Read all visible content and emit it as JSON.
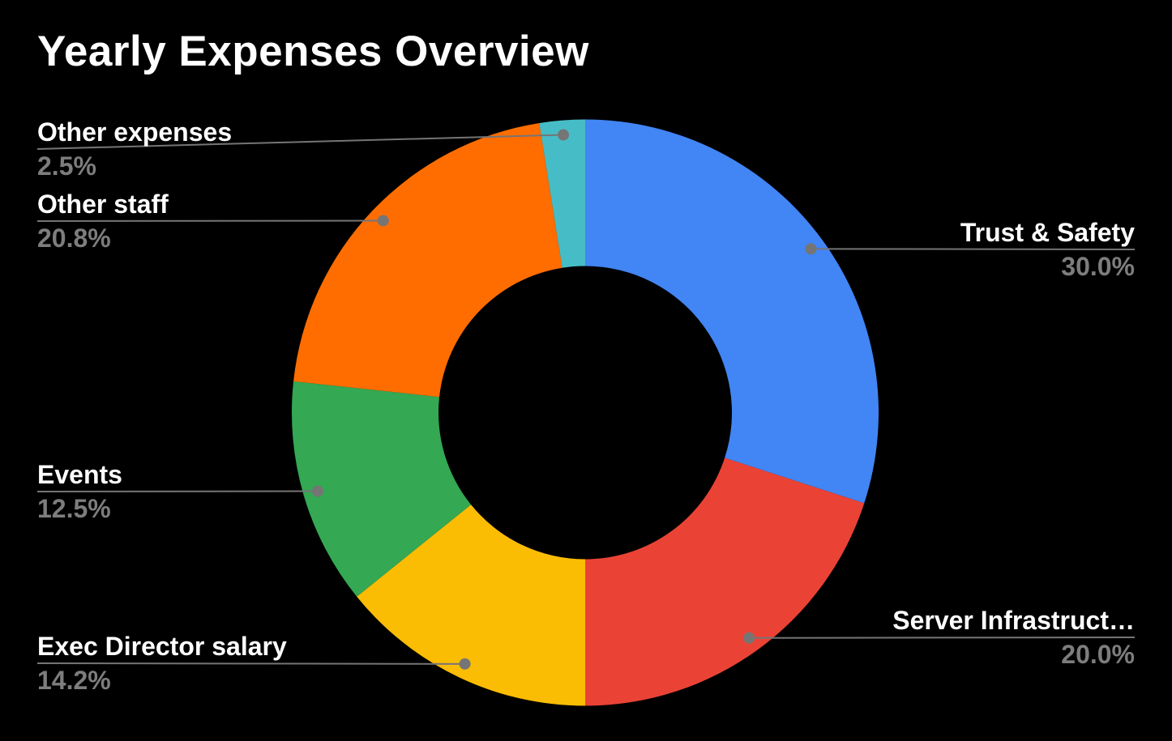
{
  "title": "Yearly Expenses Overview",
  "colors": {
    "background": "#000000",
    "label_text": "#ffffff",
    "percent_text": "#7d7d7d",
    "leader_line": "#757575",
    "leader_dot": "#757575"
  },
  "chart_data": {
    "type": "pie",
    "subtype": "donut",
    "title": "Yearly Expenses Overview",
    "hole_ratio": 0.5,
    "start_angle_deg": 0,
    "direction": "clockwise",
    "legend_position": "labeled-callouts",
    "segments": [
      {
        "label": "Trust & Safety",
        "value": 30.0,
        "pct_label": "30.0%",
        "color": "#4285f4"
      },
      {
        "label": "Server Infrastruct…",
        "value": 20.0,
        "pct_label": "20.0%",
        "color": "#ea4335"
      },
      {
        "label": "Exec Director salary",
        "value": 14.2,
        "pct_label": "14.2%",
        "color": "#fbbc04"
      },
      {
        "label": "Events",
        "value": 12.5,
        "pct_label": "12.5%",
        "color": "#34a853"
      },
      {
        "label": "Other staff",
        "value": 20.8,
        "pct_label": "20.8%",
        "color": "#ff6d01"
      },
      {
        "label": "Other expenses",
        "value": 2.5,
        "pct_label": "2.5%",
        "color": "#46bdc6"
      }
    ]
  }
}
